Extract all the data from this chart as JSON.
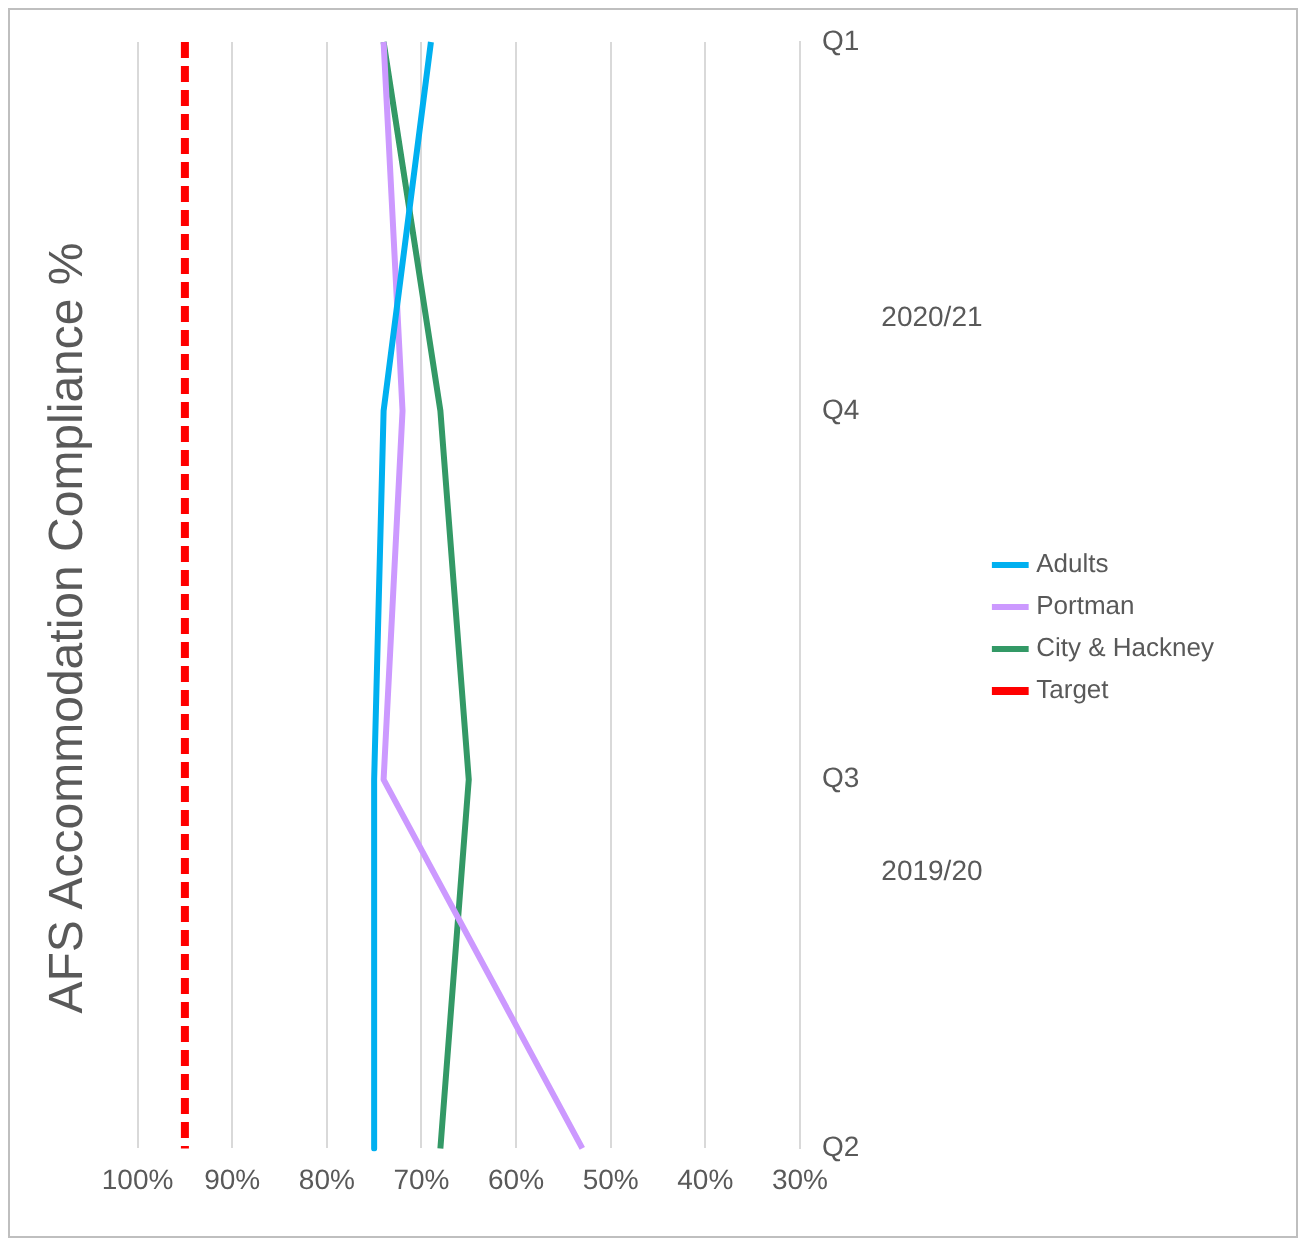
{
  "chart_data": {
    "type": "line",
    "title": "AFS Accommodation Compliance %",
    "orientation": "horizontal",
    "categories": [
      "Q1",
      "Q4",
      "Q3",
      "Q2"
    ],
    "series": [
      {
        "name": "Adults",
        "color": "#00b0f0",
        "values": [
          69,
          74,
          75,
          75
        ]
      },
      {
        "name": "Portman",
        "color": "#cc99ff",
        "values": [
          74,
          72,
          74,
          53
        ]
      },
      {
        "name": "City & Hackney",
        "color": "#339966",
        "values": [
          74,
          68,
          65,
          68
        ]
      },
      {
        "name": "Target",
        "color": "#ff0000",
        "values": [
          95,
          95,
          95,
          95
        ],
        "line_style": "dashed"
      }
    ],
    "xlim": [
      100,
      30
    ],
    "xticks": [
      {
        "value": 100,
        "label": "100%"
      },
      {
        "value": 90,
        "label": "90%"
      },
      {
        "value": 80,
        "label": "80%"
      },
      {
        "value": 70,
        "label": "70%"
      },
      {
        "value": 60,
        "label": "60%"
      },
      {
        "value": 50,
        "label": "50%"
      },
      {
        "value": 40,
        "label": "40%"
      },
      {
        "value": 30,
        "label": "30%"
      }
    ],
    "annotations": [
      "2020/21",
      "2019/20"
    ],
    "grid": "x",
    "legend": "right",
    "marker": "none",
    "line_style": "solid"
  }
}
